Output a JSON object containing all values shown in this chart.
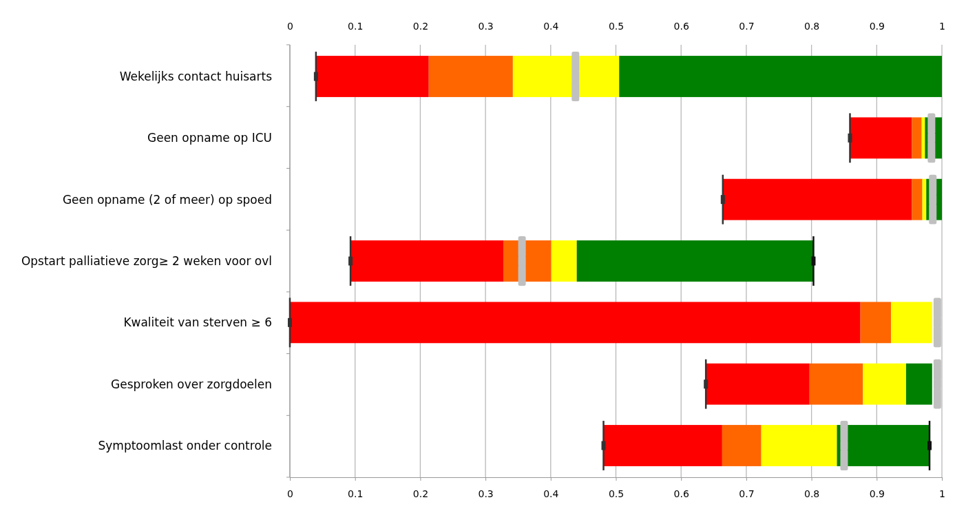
{
  "chart_data": {
    "type": "bar",
    "orientation": "horizontal",
    "categories": [
      "Wekelijks contact huisarts",
      "Geen opname op ICU",
      "Geen opname (2 of meer) op spoed",
      "Opstart palliatieve zorg≥ 2 weken voor ovl",
      "Kwaliteit van sterven ≥ 6",
      "Gesproken over zorgdoelen",
      "Symptoomlast onder controle"
    ],
    "series": [
      {
        "color": "#ff0000",
        "base": [
          0.04,
          0.859,
          0.664,
          0.093,
          0,
          0.638,
          0.481
        ],
        "values": [
          0.173,
          0.095,
          0.29,
          0.235,
          0.875,
          0.159,
          0.182
        ]
      },
      {
        "color": "#ff6600",
        "base": [
          0.213,
          0.954,
          0.954,
          0.328,
          0.875,
          0.797,
          0.663
        ],
        "values": [
          0.129,
          0.015,
          0.016,
          0.073,
          0.047,
          0.082,
          0.06
        ]
      },
      {
        "color": "#ffff00",
        "base": [
          0.342,
          0.969,
          0.97,
          0.401,
          0.922,
          0.879,
          0.723
        ],
        "values": [
          0.163,
          0.005,
          0.006,
          0.039,
          0.063,
          0.066,
          0.116
        ]
      },
      {
        "color": "#008000",
        "base": [
          0.505,
          0.974,
          0.976,
          0.44,
          null,
          0.945,
          0.839
        ],
        "values": [
          0.495,
          0.026,
          0.024,
          0.363,
          null,
          0.04,
          0.142
        ]
      },
      {
        "type": "scatter",
        "color": "#c0c0c0",
        "values": [
          0.438,
          0.984,
          0.986,
          0.356,
          0.993,
          0.993,
          0.85
        ]
      },
      {
        "type": "scatter",
        "color": "#333333",
        "values": [
          0.04,
          0.859,
          0.664,
          0.093,
          0,
          0.638,
          0.481
        ]
      },
      {
        "type": "scatter",
        "color": "#111111",
        "values": [
          null,
          null,
          null,
          0.803,
          null,
          null,
          0.981
        ]
      }
    ],
    "xlim": [
      0,
      1
    ],
    "xticks": [
      0,
      0.1,
      0.2,
      0.3,
      0.4,
      0.5,
      0.6,
      0.7,
      0.8,
      0.9,
      1
    ],
    "x2lim": [
      0,
      1
    ],
    "x2ticks": [
      0,
      0.1,
      0.2,
      0.3,
      0.4,
      0.5,
      0.6,
      0.7,
      0.8,
      0.9,
      1
    ],
    "grid": "x"
  }
}
